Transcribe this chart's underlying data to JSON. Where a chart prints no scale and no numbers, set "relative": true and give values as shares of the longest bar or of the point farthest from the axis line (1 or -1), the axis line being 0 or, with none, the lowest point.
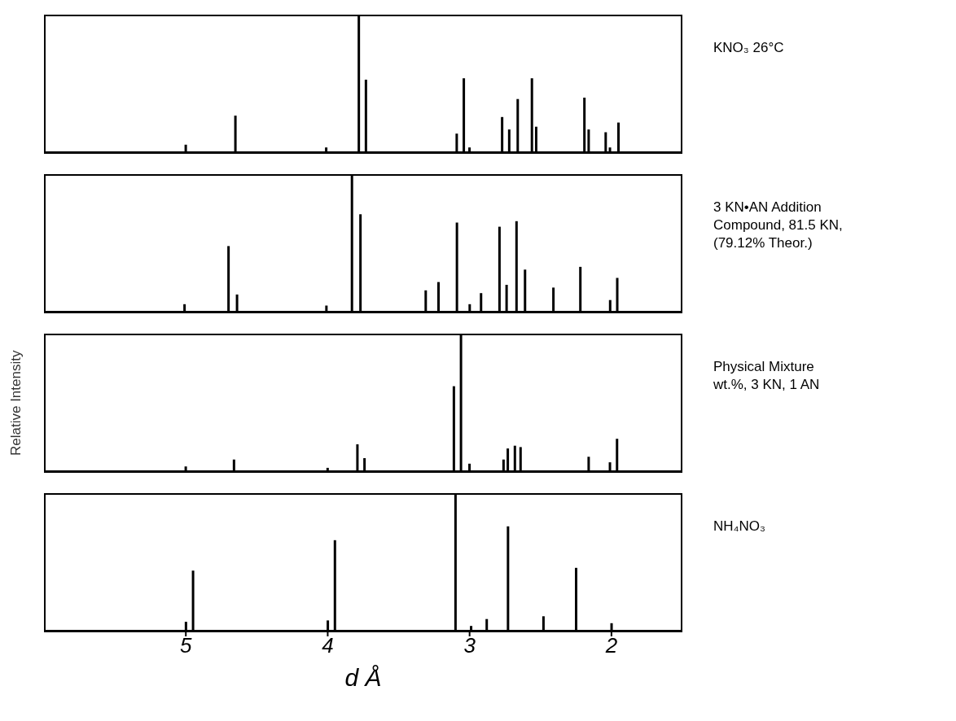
{
  "chart_data": [
    {
      "type": "bar",
      "relative": true,
      "xlim": [
        6,
        1.5
      ],
      "xticks": [
        5,
        4,
        3,
        2
      ],
      "tick_labels": false,
      "x": [
        5.0,
        4.65,
        4.01,
        3.78,
        3.73,
        3.09,
        3.04,
        3.0,
        2.77,
        2.72,
        2.66,
        2.56,
        2.53,
        2.19,
        2.16,
        2.04,
        2.01,
        1.95
      ],
      "series": [
        {
          "name": "KNO₃ 26°C",
          "color": "#000000",
          "values": [
            0.06,
            0.27,
            0.04,
            1.0,
            0.53,
            0.14,
            0.54,
            0.04,
            0.26,
            0.17,
            0.39,
            0.54,
            0.19,
            0.4,
            0.17,
            0.15,
            0.04,
            0.22
          ]
        }
      ]
    },
    {
      "type": "bar",
      "relative": true,
      "xlim": [
        6,
        1.5
      ],
      "xticks": [
        5,
        4,
        3,
        2
      ],
      "tick_labels": false,
      "x": [
        5.01,
        4.7,
        4.64,
        4.01,
        3.83,
        3.77,
        3.31,
        3.22,
        3.09,
        3.0,
        2.92,
        2.79,
        2.74,
        2.67,
        2.61,
        2.41,
        2.22,
        2.01,
        1.96
      ],
      "series": [
        {
          "name": "3 KN•AN Addition Compound, 81.5 KN, (79.12% Theor.)",
          "color": "#000000",
          "values": [
            0.06,
            0.48,
            0.13,
            0.05,
            1.0,
            0.71,
            0.16,
            0.22,
            0.65,
            0.06,
            0.14,
            0.62,
            0.2,
            0.66,
            0.31,
            0.18,
            0.33,
            0.09,
            0.25
          ]
        }
      ]
    },
    {
      "type": "bar",
      "ylabel": "Relative Intensity",
      "relative": true,
      "xlim": [
        6,
        1.5
      ],
      "xticks": [
        5,
        4,
        3,
        2
      ],
      "tick_labels": false,
      "x": [
        5.0,
        4.66,
        4.0,
        3.79,
        3.74,
        3.11,
        3.06,
        3.0,
        2.76,
        2.73,
        2.68,
        2.64,
        2.16,
        2.01,
        1.96
      ],
      "series": [
        {
          "name": "Physical Mixture wt.%, 3 KN, 1 AN",
          "color": "#000000",
          "values": [
            0.04,
            0.09,
            0.03,
            0.2,
            0.1,
            0.62,
            1.0,
            0.06,
            0.09,
            0.17,
            0.19,
            0.18,
            0.11,
            0.07,
            0.24
          ]
        }
      ]
    },
    {
      "type": "bar",
      "xlabel": "d Å",
      "relative": true,
      "xlim": [
        6,
        1.5
      ],
      "xticks": [
        5,
        4,
        3,
        2
      ],
      "tick_labels": "x",
      "x": [
        5.0,
        4.95,
        4.0,
        3.95,
        3.1,
        2.99,
        2.88,
        2.73,
        2.48,
        2.25,
        2.0
      ],
      "series": [
        {
          "name": "NH₄NO₃",
          "color": "#000000",
          "values": [
            0.07,
            0.44,
            0.08,
            0.66,
            1.0,
            0.04,
            0.09,
            0.76,
            0.11,
            0.46,
            0.06
          ]
        }
      ]
    }
  ]
}
